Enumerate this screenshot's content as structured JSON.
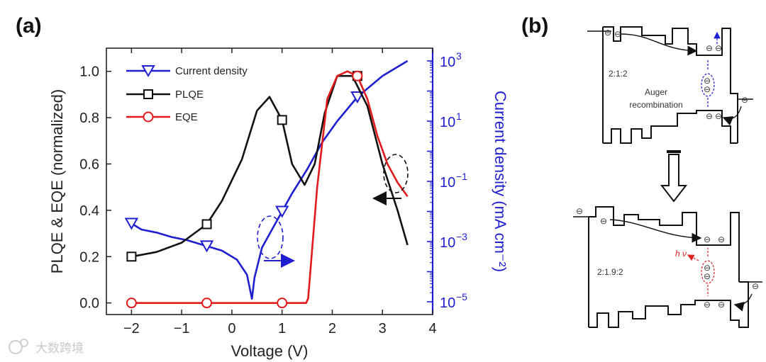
{
  "panel_a_label": "(a)",
  "panel_b_label": "(b)",
  "watermark": "大数跨境",
  "chart_data": {
    "type": "line",
    "xlabel": "Voltage (V)",
    "ylabel": "PLQE & EQE (normalized)",
    "y2label": "Current density (mA cm⁻²)",
    "xlim": [
      -2.5,
      4
    ],
    "ylim": [
      -0.05,
      1.1
    ],
    "y2_scale": "log",
    "y2_log_range": [
      -5,
      3
    ],
    "x_ticks": [
      -2,
      -1,
      0,
      1,
      2,
      3,
      4
    ],
    "x_tick_labels": [
      "−2",
      "−1",
      "0",
      "1",
      "2",
      "3",
      "4"
    ],
    "y_ticks": [
      0.0,
      0.2,
      0.4,
      0.6,
      0.8,
      1.0
    ],
    "y_tick_labels": [
      "0.0",
      "0.2",
      "0.4",
      "0.6",
      "0.8",
      "1.0"
    ],
    "y2_ticks": [
      -5,
      -3,
      -1,
      1,
      3
    ],
    "y2_tick_labels": [
      {
        "base": "10",
        "exp": "−5"
      },
      {
        "base": "10",
        "exp": "−3"
      },
      {
        "base": "10",
        "exp": "−1"
      },
      {
        "base": "10",
        "exp": "1"
      },
      {
        "base": "10",
        "exp": "3"
      }
    ],
    "legend": [
      {
        "name": "Current density",
        "color": "#1f1fd0",
        "marker": "triangle-down"
      },
      {
        "name": "PLQE",
        "color": "#111111",
        "marker": "square"
      },
      {
        "name": "EQE",
        "color": "#e11b1b",
        "marker": "circle"
      }
    ],
    "series": [
      {
        "name": "Current density",
        "axis": "right",
        "color": "#1f1fd0",
        "x": [
          -2.0,
          -1.8,
          -1.5,
          -1.2,
          -0.9,
          -0.5,
          -0.2,
          0.1,
          0.3,
          0.4,
          0.45,
          0.6,
          0.8,
          1.0,
          1.2,
          1.5,
          1.8,
          2.1,
          2.5,
          3.0,
          3.5
        ],
        "log_y": [
          -2.4,
          -2.6,
          -2.7,
          -2.85,
          -2.95,
          -3.15,
          -3.3,
          -3.6,
          -4.1,
          -4.9,
          -4.2,
          -3.2,
          -2.6,
          -2.0,
          -1.4,
          -0.6,
          0.3,
          1.0,
          1.8,
          2.5,
          3.0
        ],
        "marker_x": [
          -2.0,
          -0.5,
          1.0,
          2.5
        ],
        "marker_log_y": [
          -2.4,
          -3.15,
          -2.0,
          1.8
        ]
      },
      {
        "name": "PLQE",
        "axis": "left",
        "color": "#111111",
        "x": [
          -2.0,
          -1.5,
          -1.0,
          -0.5,
          -0.2,
          0.2,
          0.5,
          0.75,
          1.0,
          1.2,
          1.45,
          1.65,
          1.85,
          2.1,
          2.4,
          2.7,
          3.0,
          3.3,
          3.5
        ],
        "y": [
          0.2,
          0.22,
          0.26,
          0.34,
          0.44,
          0.62,
          0.83,
          0.89,
          0.79,
          0.6,
          0.51,
          0.6,
          0.82,
          0.98,
          0.98,
          0.85,
          0.6,
          0.4,
          0.25
        ],
        "marker_x": [
          -2.0,
          -0.5,
          1.0,
          2.5
        ],
        "marker_y": [
          0.2,
          0.34,
          0.79,
          0.98
        ]
      },
      {
        "name": "EQE",
        "axis": "left",
        "color": "#e11b1b",
        "x": [
          -2.0,
          -1.0,
          0.0,
          1.0,
          1.48,
          1.52,
          1.7,
          1.9,
          2.1,
          2.3,
          2.5,
          2.7,
          2.9,
          3.1,
          3.3,
          3.5
        ],
        "y": [
          0.0,
          0.0,
          0.0,
          0.0,
          0.0,
          0.02,
          0.5,
          0.88,
          0.98,
          1.0,
          0.98,
          0.88,
          0.72,
          0.6,
          0.52,
          0.46
        ],
        "marker_x": [
          -2.0,
          -0.5,
          1.0,
          2.5
        ],
        "marker_y": [
          0.0,
          0.0,
          0.0,
          0.98
        ]
      }
    ]
  },
  "panel_b": {
    "top_ratio": "2:1:2",
    "top_note_line1": "Auger",
    "top_note_line2": "recombination",
    "bottom_ratio": "2:1.9:2",
    "bottom_note": "h ν",
    "electron_symbol": "⊖"
  }
}
